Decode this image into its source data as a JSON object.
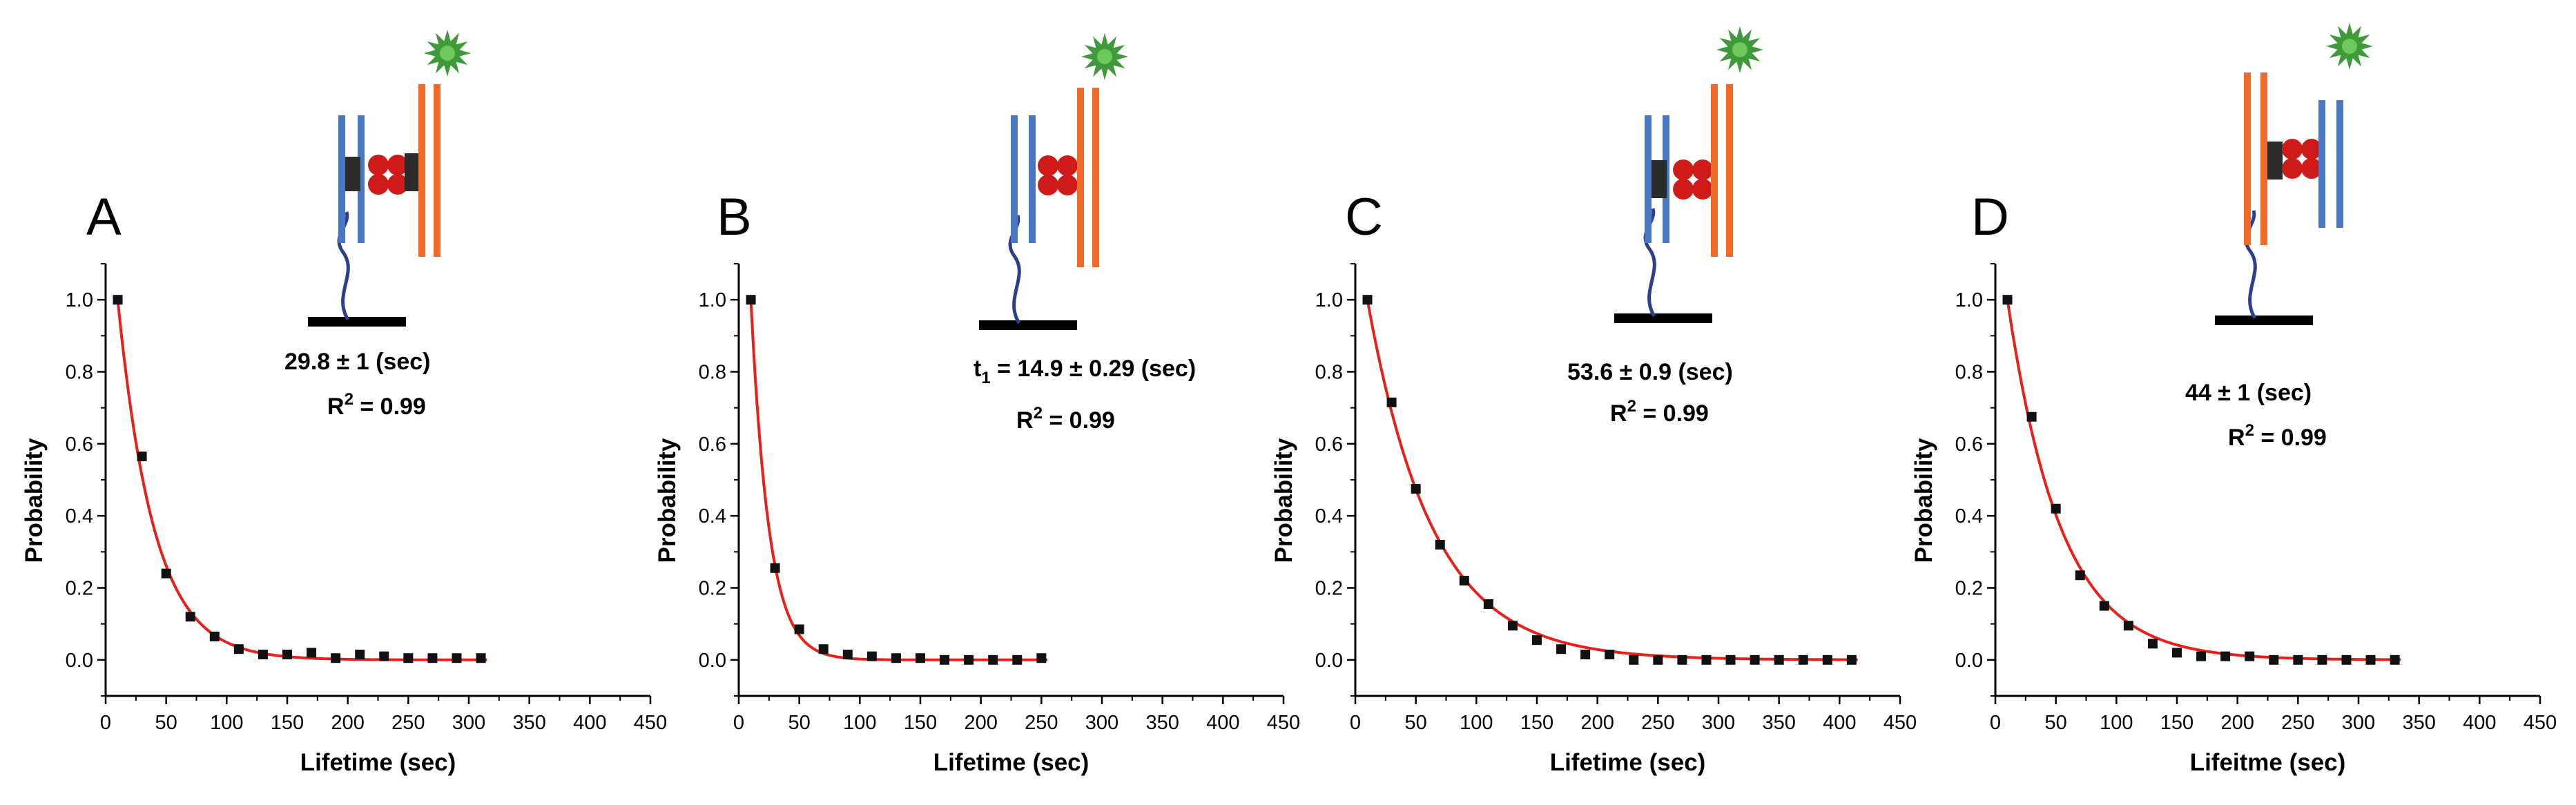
{
  "figure": {
    "y_axis_label": "Probability",
    "tick_labels_x": [
      "0",
      "50",
      "100",
      "150",
      "200",
      "250",
      "300",
      "350",
      "400",
      "450"
    ],
    "tick_labels_y": [
      "0.0",
      "0.2",
      "0.4",
      "0.6",
      "0.8",
      "1.0"
    ]
  },
  "colors": {
    "fit_line": "#e8201a",
    "markers": "#111111",
    "dna_blue": "#4a77c4",
    "dna_orange": "#f26a2a",
    "protein_red": "#d01a1a",
    "dark_block": "#2b2b2b",
    "dye_green": "#3f9a3a",
    "dye_green_center": "#6ec85a",
    "tether": "#2d3f8a",
    "surface": "#000000"
  },
  "panels": [
    {
      "letter": "A",
      "annotation": {
        "line1": "29.8 ± 1 (sec)",
        "r2_prefix": "R",
        "r2_sup": "2",
        "r2_value": " = 0.99"
      },
      "schematic": "three-strand-with-two-blocks"
    },
    {
      "letter": "B",
      "annotation": {
        "t_prefix": "t",
        "t_sub": "1",
        "line1": " = 14.9 ± 0.29 (sec)",
        "r2_prefix": "R",
        "r2_sup": "2",
        "r2_value": " = 0.99"
      },
      "schematic": "no-block"
    },
    {
      "letter": "C",
      "annotation": {
        "line1": "53.6 ± 0.9 (sec)",
        "r2_prefix": "R",
        "r2_sup": "2",
        "r2_value": " = 0.99"
      },
      "schematic": "left-block"
    },
    {
      "letter": "D",
      "annotation": {
        "line1": "44 ± 1 (sec)",
        "r2_prefix": "R",
        "r2_sup": "2",
        "r2_value": " = 0.99"
      },
      "schematic": "swapped-left-block"
    }
  ],
  "chart_data": [
    {
      "type": "scatter",
      "title": "A",
      "xlabel": "Lifetime (sec)",
      "ylabel": "Probability",
      "xlim": [
        0,
        450
      ],
      "ylim": [
        -0.1,
        1.1
      ],
      "x": [
        10,
        30,
        50,
        70,
        90,
        110,
        130,
        150,
        170,
        190,
        210,
        230,
        250,
        270,
        290,
        310
      ],
      "y": [
        1.0,
        0.565,
        0.24,
        0.12,
        0.065,
        0.03,
        0.015,
        0.015,
        0.02,
        0.005,
        0.015,
        0.01,
        0.005,
        0.005,
        0.005,
        0.005
      ],
      "fit": {
        "model": "exponential",
        "tau": 29.8,
        "x0": 10,
        "x_end": 315
      }
    },
    {
      "type": "scatter",
      "title": "B",
      "xlabel": "Lifetime (sec)",
      "ylabel": "Probability",
      "xlim": [
        0,
        450
      ],
      "ylim": [
        -0.1,
        1.1
      ],
      "x": [
        10,
        30,
        50,
        70,
        90,
        110,
        130,
        150,
        170,
        190,
        210,
        230,
        250
      ],
      "y": [
        1.0,
        0.255,
        0.085,
        0.03,
        0.015,
        0.01,
        0.005,
        0.005,
        0.0,
        0.0,
        0.0,
        0.0,
        0.005
      ],
      "fit": {
        "model": "exponential",
        "tau": 14.9,
        "x0": 10,
        "x_end": 255
      }
    },
    {
      "type": "scatter",
      "title": "C",
      "xlabel": "Lifetime (sec)",
      "ylabel": "Probability",
      "xlim": [
        0,
        450
      ],
      "ylim": [
        -0.1,
        1.1
      ],
      "x": [
        10,
        30,
        50,
        70,
        90,
        110,
        130,
        150,
        170,
        190,
        210,
        230,
        250,
        270,
        290,
        310,
        330,
        350,
        370,
        390,
        410
      ],
      "y": [
        1.0,
        0.715,
        0.475,
        0.32,
        0.22,
        0.155,
        0.095,
        0.055,
        0.03,
        0.015,
        0.015,
        0.0,
        0.0,
        0.0,
        0.0,
        0.0,
        0.0,
        0.0,
        0.0,
        0.0,
        0.0
      ],
      "fit": {
        "model": "exponential",
        "tau": 53.6,
        "x0": 10,
        "x_end": 415
      }
    },
    {
      "type": "scatter",
      "title": "D",
      "xlabel": "Lifeitme (sec)",
      "ylabel": "Probability",
      "xlim": [
        0,
        450
      ],
      "ylim": [
        -0.1,
        1.1
      ],
      "x": [
        10,
        30,
        50,
        70,
        90,
        110,
        130,
        150,
        170,
        190,
        210,
        230,
        250,
        270,
        290,
        310,
        330
      ],
      "y": [
        1.0,
        0.675,
        0.42,
        0.235,
        0.15,
        0.095,
        0.045,
        0.02,
        0.01,
        0.01,
        0.01,
        0.0,
        0.0,
        0.0,
        0.0,
        0.0,
        0.0
      ],
      "fit": {
        "model": "exponential",
        "tau": 44,
        "x0": 10,
        "x_end": 335
      }
    }
  ]
}
